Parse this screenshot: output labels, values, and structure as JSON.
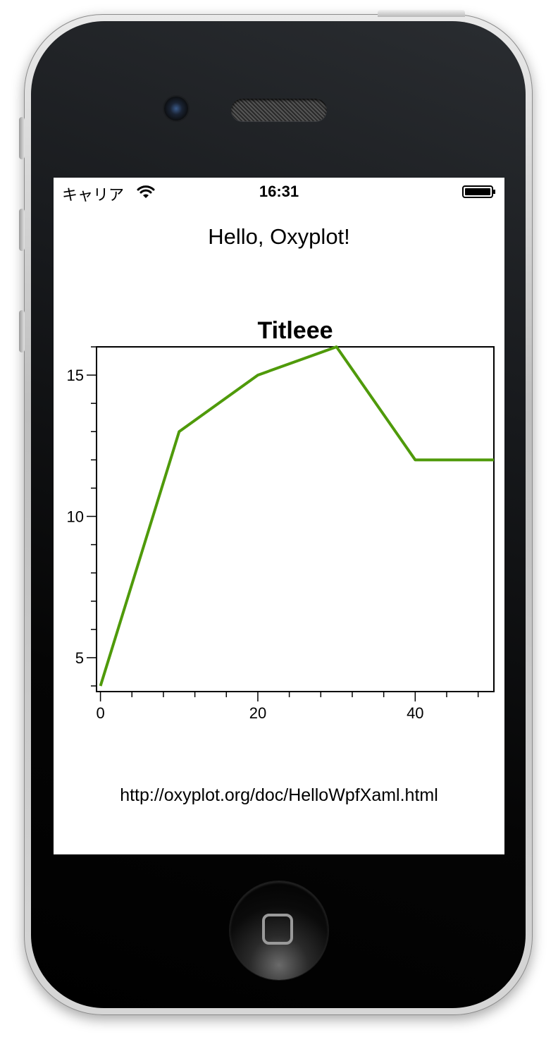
{
  "status_bar": {
    "carrier": "キャリア",
    "time": "16:31",
    "wifi_icon": "wifi-icon",
    "battery_icon": "battery-full-icon"
  },
  "app": {
    "heading": "Hello, Oxyplot!",
    "link": "http://oxyplot.org/doc/HelloWpfXaml.html"
  },
  "chart_data": {
    "type": "line",
    "title": "Titleee",
    "xlabel": "",
    "ylabel": "",
    "x": [
      0,
      10,
      20,
      30,
      40,
      50
    ],
    "series": [
      {
        "values": [
          4,
          13,
          15,
          16,
          12,
          12
        ],
        "color": "#4f9a0a"
      }
    ],
    "xlim": [
      -0.5,
      50
    ],
    "ylim": [
      3.8,
      16
    ],
    "x_ticks": [
      0,
      20,
      40
    ],
    "y_ticks": [
      5,
      10,
      15
    ],
    "x_minor_step": 4,
    "y_minor_step": 1,
    "grid": false
  }
}
